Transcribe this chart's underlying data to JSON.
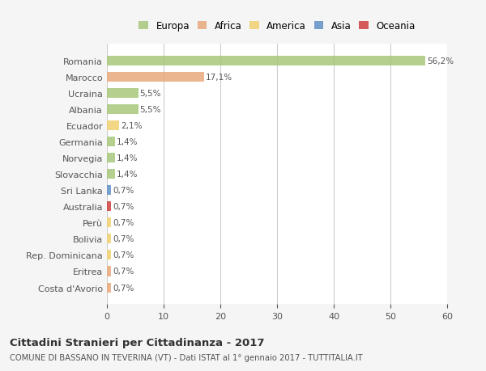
{
  "categories": [
    "Romania",
    "Marocco",
    "Ucraina",
    "Albania",
    "Ecuador",
    "Germania",
    "Norvegia",
    "Slovacchia",
    "Sri Lanka",
    "Australia",
    "Perù",
    "Bolivia",
    "Rep. Dominicana",
    "Eritrea",
    "Costa d'Avorio"
  ],
  "values": [
    56.2,
    17.1,
    5.5,
    5.5,
    2.1,
    1.4,
    1.4,
    1.4,
    0.7,
    0.7,
    0.7,
    0.7,
    0.7,
    0.7,
    0.7
  ],
  "labels": [
    "56,2%",
    "17,1%",
    "5,5%",
    "5,5%",
    "2,1%",
    "1,4%",
    "1,4%",
    "1,4%",
    "0,7%",
    "0,7%",
    "0,7%",
    "0,7%",
    "0,7%",
    "0,7%",
    "0,7%"
  ],
  "colors": [
    "#a8c87a",
    "#e8a87c",
    "#a8c87a",
    "#a8c87a",
    "#f0d070",
    "#a8c87a",
    "#a8c87a",
    "#a8c87a",
    "#6090c8",
    "#d04040",
    "#f0d070",
    "#f0d070",
    "#f0d070",
    "#e8a87c",
    "#e8a87c"
  ],
  "continent_colors": {
    "Europa": "#a8c87a",
    "Africa": "#e8a87c",
    "America": "#f0d070",
    "Asia": "#6090c8",
    "Oceania": "#d04040"
  },
  "xlim": [
    0,
    60
  ],
  "xticks": [
    0,
    10,
    20,
    30,
    40,
    50,
    60
  ],
  "title": "Cittadini Stranieri per Cittadinanza - 2017",
  "subtitle": "COMUNE DI BASSANO IN TEVERINA (VT) - Dati ISTAT al 1° gennaio 2017 - TUTTITALIA.IT",
  "bg_color": "#f5f5f5",
  "bar_bg_color": "#ffffff",
  "grid_color": "#cccccc",
  "label_color": "#555555",
  "bar_height": 0.6
}
